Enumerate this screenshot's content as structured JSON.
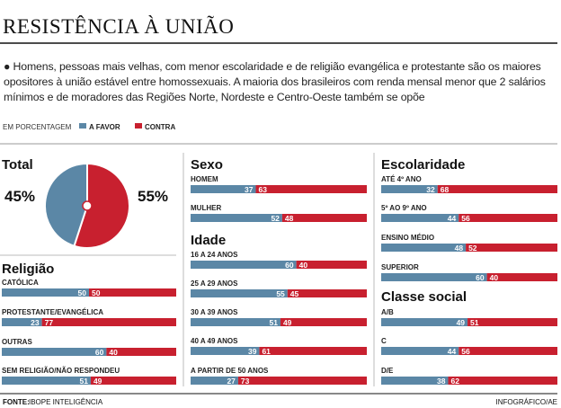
{
  "title": "RESISTÊNCIA À UNIÃO",
  "text": "Homens, pessoas mais velhas, com menor escolaridade e de religião evangélica e protestante são os maiores opositores à união estável entre homossexuais. A maioria dos brasileiros com renda mensal menor que 2 salários mínimos e de moradores das Regiões Norte, Nordeste e Centro-Oeste também se opõe",
  "legend_note": "EM PORCENTAGEM",
  "chart_data": [
    {
      "type": "pie",
      "title": "Total",
      "categories": [
        "A FAVOR",
        "CONTRA"
      ],
      "values": [
        45,
        55
      ],
      "value_labels": [
        "45%",
        "55%"
      ],
      "colors": [
        "#5b87a6",
        "#c8202f"
      ]
    },
    {
      "type": "bar",
      "orientation": "horizontal",
      "stacked": true,
      "title": "Religião",
      "xlim": [
        0,
        100
      ],
      "categories": [
        "CATÓLICA",
        "PROTESTANTE/EVANGÉLICA",
        "OUTRAS",
        "SEM RELIGIÃO/NÃO RESPONDEU"
      ],
      "series": [
        {
          "name": "A FAVOR",
          "color": "#5b87a6",
          "values": [
            50,
            23,
            60,
            51
          ]
        },
        {
          "name": "CONTRA",
          "color": "#c8202f",
          "values": [
            50,
            77,
            40,
            49
          ]
        }
      ]
    },
    {
      "type": "bar",
      "orientation": "horizontal",
      "stacked": true,
      "title": "Sexo",
      "xlim": [
        0,
        100
      ],
      "categories": [
        "HOMEM",
        "MULHER"
      ],
      "series": [
        {
          "name": "A FAVOR",
          "color": "#5b87a6",
          "values": [
            37,
            52
          ]
        },
        {
          "name": "CONTRA",
          "color": "#c8202f",
          "values": [
            63,
            48
          ]
        }
      ]
    },
    {
      "type": "bar",
      "orientation": "horizontal",
      "stacked": true,
      "title": "Idade",
      "xlim": [
        0,
        100
      ],
      "categories": [
        "16 A 24 ANOS",
        "25 A 29 ANOS",
        "30 A 39 ANOS",
        "40 A 49 ANOS",
        "A PARTIR DE 50 ANOS"
      ],
      "series": [
        {
          "name": "A FAVOR",
          "color": "#5b87a6",
          "values": [
            60,
            55,
            51,
            39,
            27
          ]
        },
        {
          "name": "CONTRA",
          "color": "#c8202f",
          "values": [
            40,
            45,
            49,
            61,
            73
          ]
        }
      ]
    },
    {
      "type": "bar",
      "orientation": "horizontal",
      "stacked": true,
      "title": "Escolaridade",
      "xlim": [
        0,
        100
      ],
      "categories": [
        "ATÉ 4º ANO",
        "5º AO 9º ANO",
        "ENSINO MÉDIO",
        "SUPERIOR"
      ],
      "series": [
        {
          "name": "A FAVOR",
          "color": "#5b87a6",
          "values": [
            32,
            44,
            48,
            60
          ]
        },
        {
          "name": "CONTRA",
          "color": "#c8202f",
          "values": [
            68,
            56,
            52,
            40
          ]
        }
      ]
    },
    {
      "type": "bar",
      "orientation": "horizontal",
      "stacked": true,
      "title": "Classe social",
      "xlim": [
        0,
        100
      ],
      "categories": [
        "A/B",
        "C",
        "D/E"
      ],
      "series": [
        {
          "name": "A FAVOR",
          "color": "#5b87a6",
          "values": [
            49,
            44,
            38
          ]
        },
        {
          "name": "CONTRA",
          "color": "#c8202f",
          "values": [
            51,
            56,
            62
          ]
        }
      ]
    }
  ],
  "source_label": "FONTE:",
  "source": "IBOPE INTELIGÊNCIA",
  "credit": "INFOGRÁFICO/AE"
}
